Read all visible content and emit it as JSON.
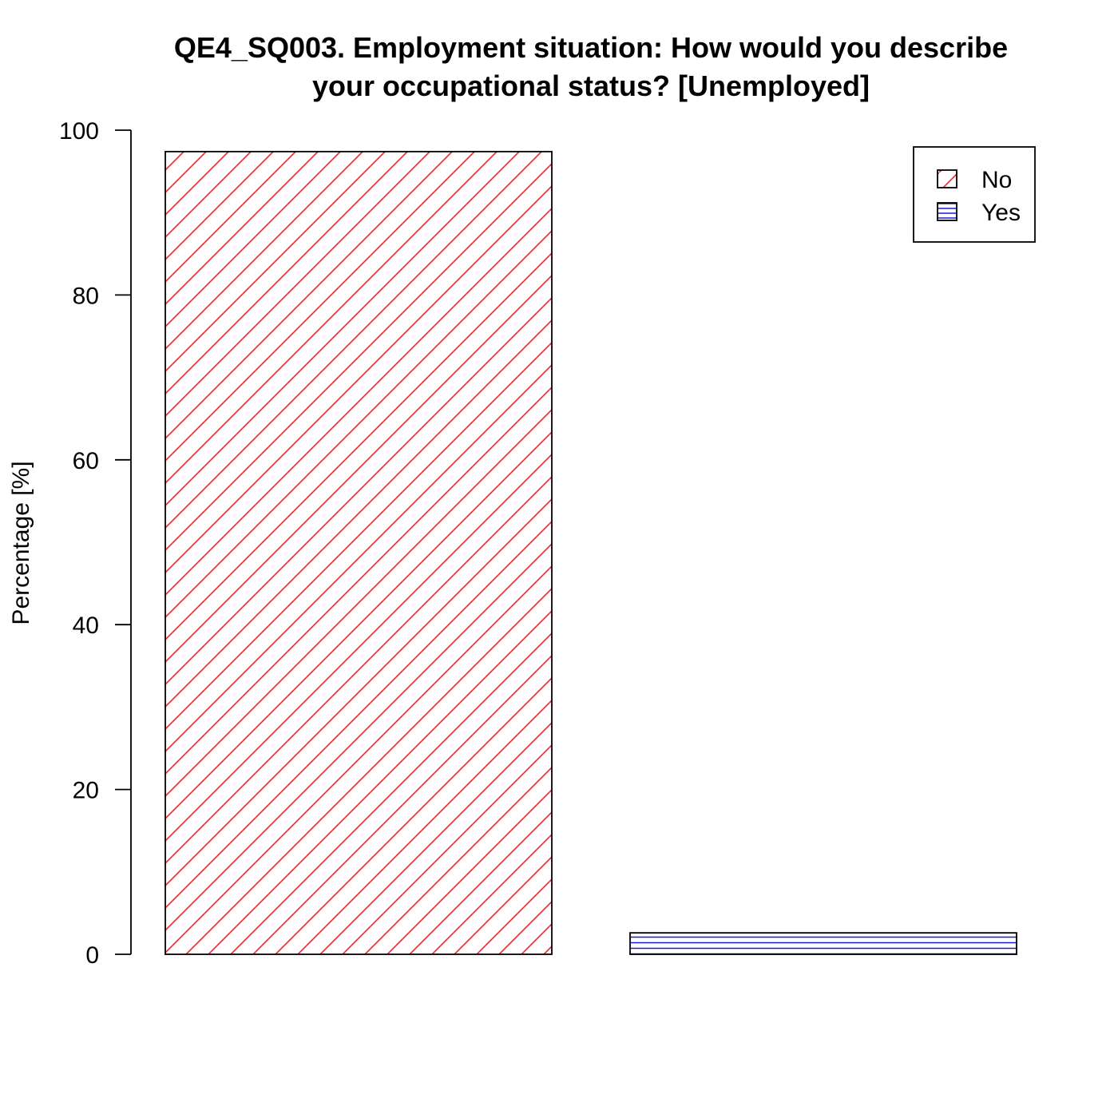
{
  "chart_data": {
    "type": "bar",
    "title_lines": [
      "QE4_SQ003. Employment situation: How would you describe",
      "your occupational status?  [Unemployed]"
    ],
    "ylabel": "Percentage [%]",
    "xlabel": "",
    "categories": [
      "No",
      "Yes"
    ],
    "values": [
      97.4,
      2.6
    ],
    "ylim": [
      0,
      100
    ],
    "yticks": [
      0,
      20,
      40,
      60,
      80,
      100
    ],
    "grid": false,
    "legend": {
      "position": "top-right",
      "entries": [
        {
          "label": "No",
          "color": "#e8242a",
          "pattern": "diagonal"
        },
        {
          "label": "Yes",
          "color": "#1a1adb",
          "pattern": "horizontal"
        }
      ]
    }
  }
}
